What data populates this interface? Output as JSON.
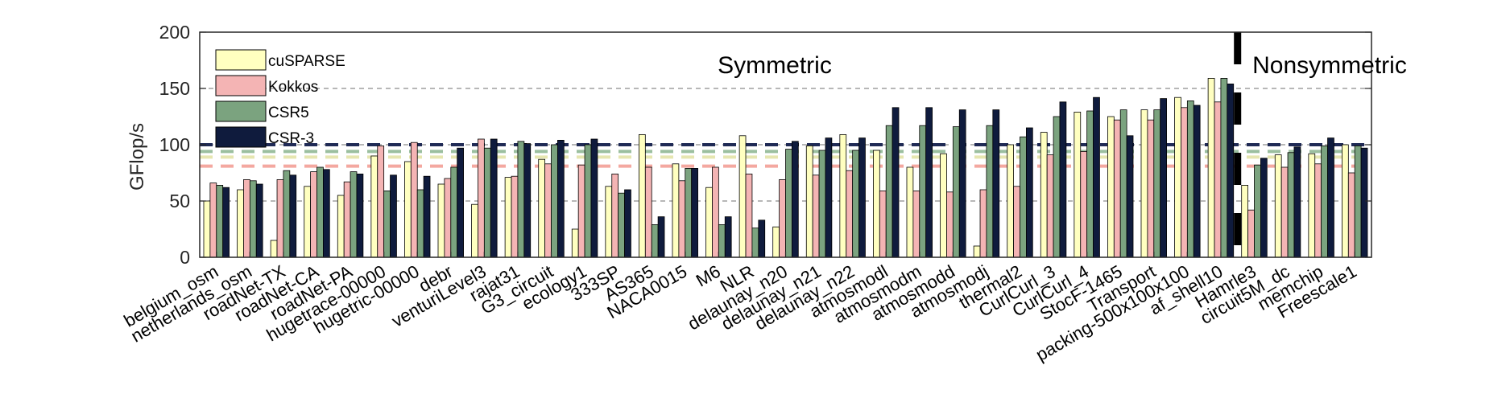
{
  "chart_data": {
    "type": "bar",
    "title": "",
    "xlabel": "",
    "ylabel": "GFlop/s",
    "ylim": [
      0,
      200
    ],
    "yticks": [
      0,
      50,
      100,
      150,
      200
    ],
    "grid": "dashed horizontal gridlines at 50, 100 and 150",
    "legend_position": "top-left",
    "categories": [
      "belgium_osm",
      "netherlands_osm",
      "roadNet-TX",
      "roadNet-CA",
      "roadNet-PA",
      "hugetrace-00000",
      "hugetric-00000",
      "debr",
      "venturiLevel3",
      "rajat31",
      "G3_circuit",
      "ecology1",
      "333SP",
      "AS365",
      "NACA0015",
      "M6",
      "NLR",
      "delaunay_n20",
      "delaunay_n21",
      "delaunay_n22",
      "atmosmodl",
      "atmosmodm",
      "atmosmodd",
      "atmosmodj",
      "thermal2",
      "CurlCurl_3",
      "CurlCurl_4",
      "StocF-1465",
      "Transport",
      "packing-500x100x100",
      "af_shell10",
      "Hamrle3",
      "circuit5M_dc",
      "memchip",
      "Freescale1"
    ],
    "series": [
      {
        "name": "cuSPARSE",
        "color": "#ffffc0",
        "values": [
          50,
          60,
          15,
          63,
          55,
          90,
          85,
          65,
          47,
          71,
          87,
          25,
          63,
          109,
          83,
          62,
          108,
          27,
          99,
          109,
          95,
          80,
          92,
          10,
          100,
          111,
          129,
          125,
          131,
          142,
          159,
          64,
          91,
          92,
          100
        ]
      },
      {
        "name": "Kokkos",
        "color": "#f4b4b4",
        "values": [
          66,
          69,
          69,
          76,
          67,
          99,
          102,
          70,
          105,
          72,
          83,
          82,
          74,
          80,
          68,
          80,
          74,
          69,
          73,
          77,
          59,
          59,
          58,
          60,
          63,
          91,
          94,
          122,
          122,
          133,
          138,
          42,
          80,
          83,
          75
        ]
      },
      {
        "name": "CSR5",
        "color": "#7ba37f",
        "values": [
          64,
          68,
          77,
          80,
          76,
          59,
          60,
          80,
          97,
          103,
          100,
          100,
          57,
          29,
          79,
          29,
          26,
          96,
          95,
          95,
          117,
          117,
          116,
          117,
          107,
          125,
          130,
          131,
          131,
          139,
          159,
          82,
          93,
          99,
          99
        ]
      },
      {
        "name": "CSR-3",
        "color": "#0f1b3d",
        "values": [
          62,
          65,
          73,
          78,
          74,
          73,
          72,
          97,
          105,
          101,
          104,
          105,
          60,
          36,
          79,
          36,
          33,
          103,
          106,
          106,
          133,
          133,
          131,
          131,
          115,
          138,
          142,
          108,
          141,
          135,
          154,
          88,
          98,
          106,
          97
        ]
      }
    ],
    "reference_lines": [
      {
        "series": "CSR-3",
        "value": 100
      },
      {
        "series": "CSR5",
        "value": 94
      },
      {
        "series": "cuSPARSE",
        "value": 89
      },
      {
        "series": "Kokkos",
        "value": 81
      }
    ],
    "annotations": [
      "Symmetric",
      "Nonsymmetric"
    ],
    "separator_after_category": "af_shell10"
  },
  "colors": {
    "axis": "#262626",
    "grid": "#8c8c8c",
    "separator": "#000000",
    "ref_CSR-3": "#1f2a55",
    "ref_CSR5": "#9bbf9f",
    "ref_cuSPARSE": "#e6e6b0",
    "ref_Kokkos": "#f4a8a0"
  }
}
